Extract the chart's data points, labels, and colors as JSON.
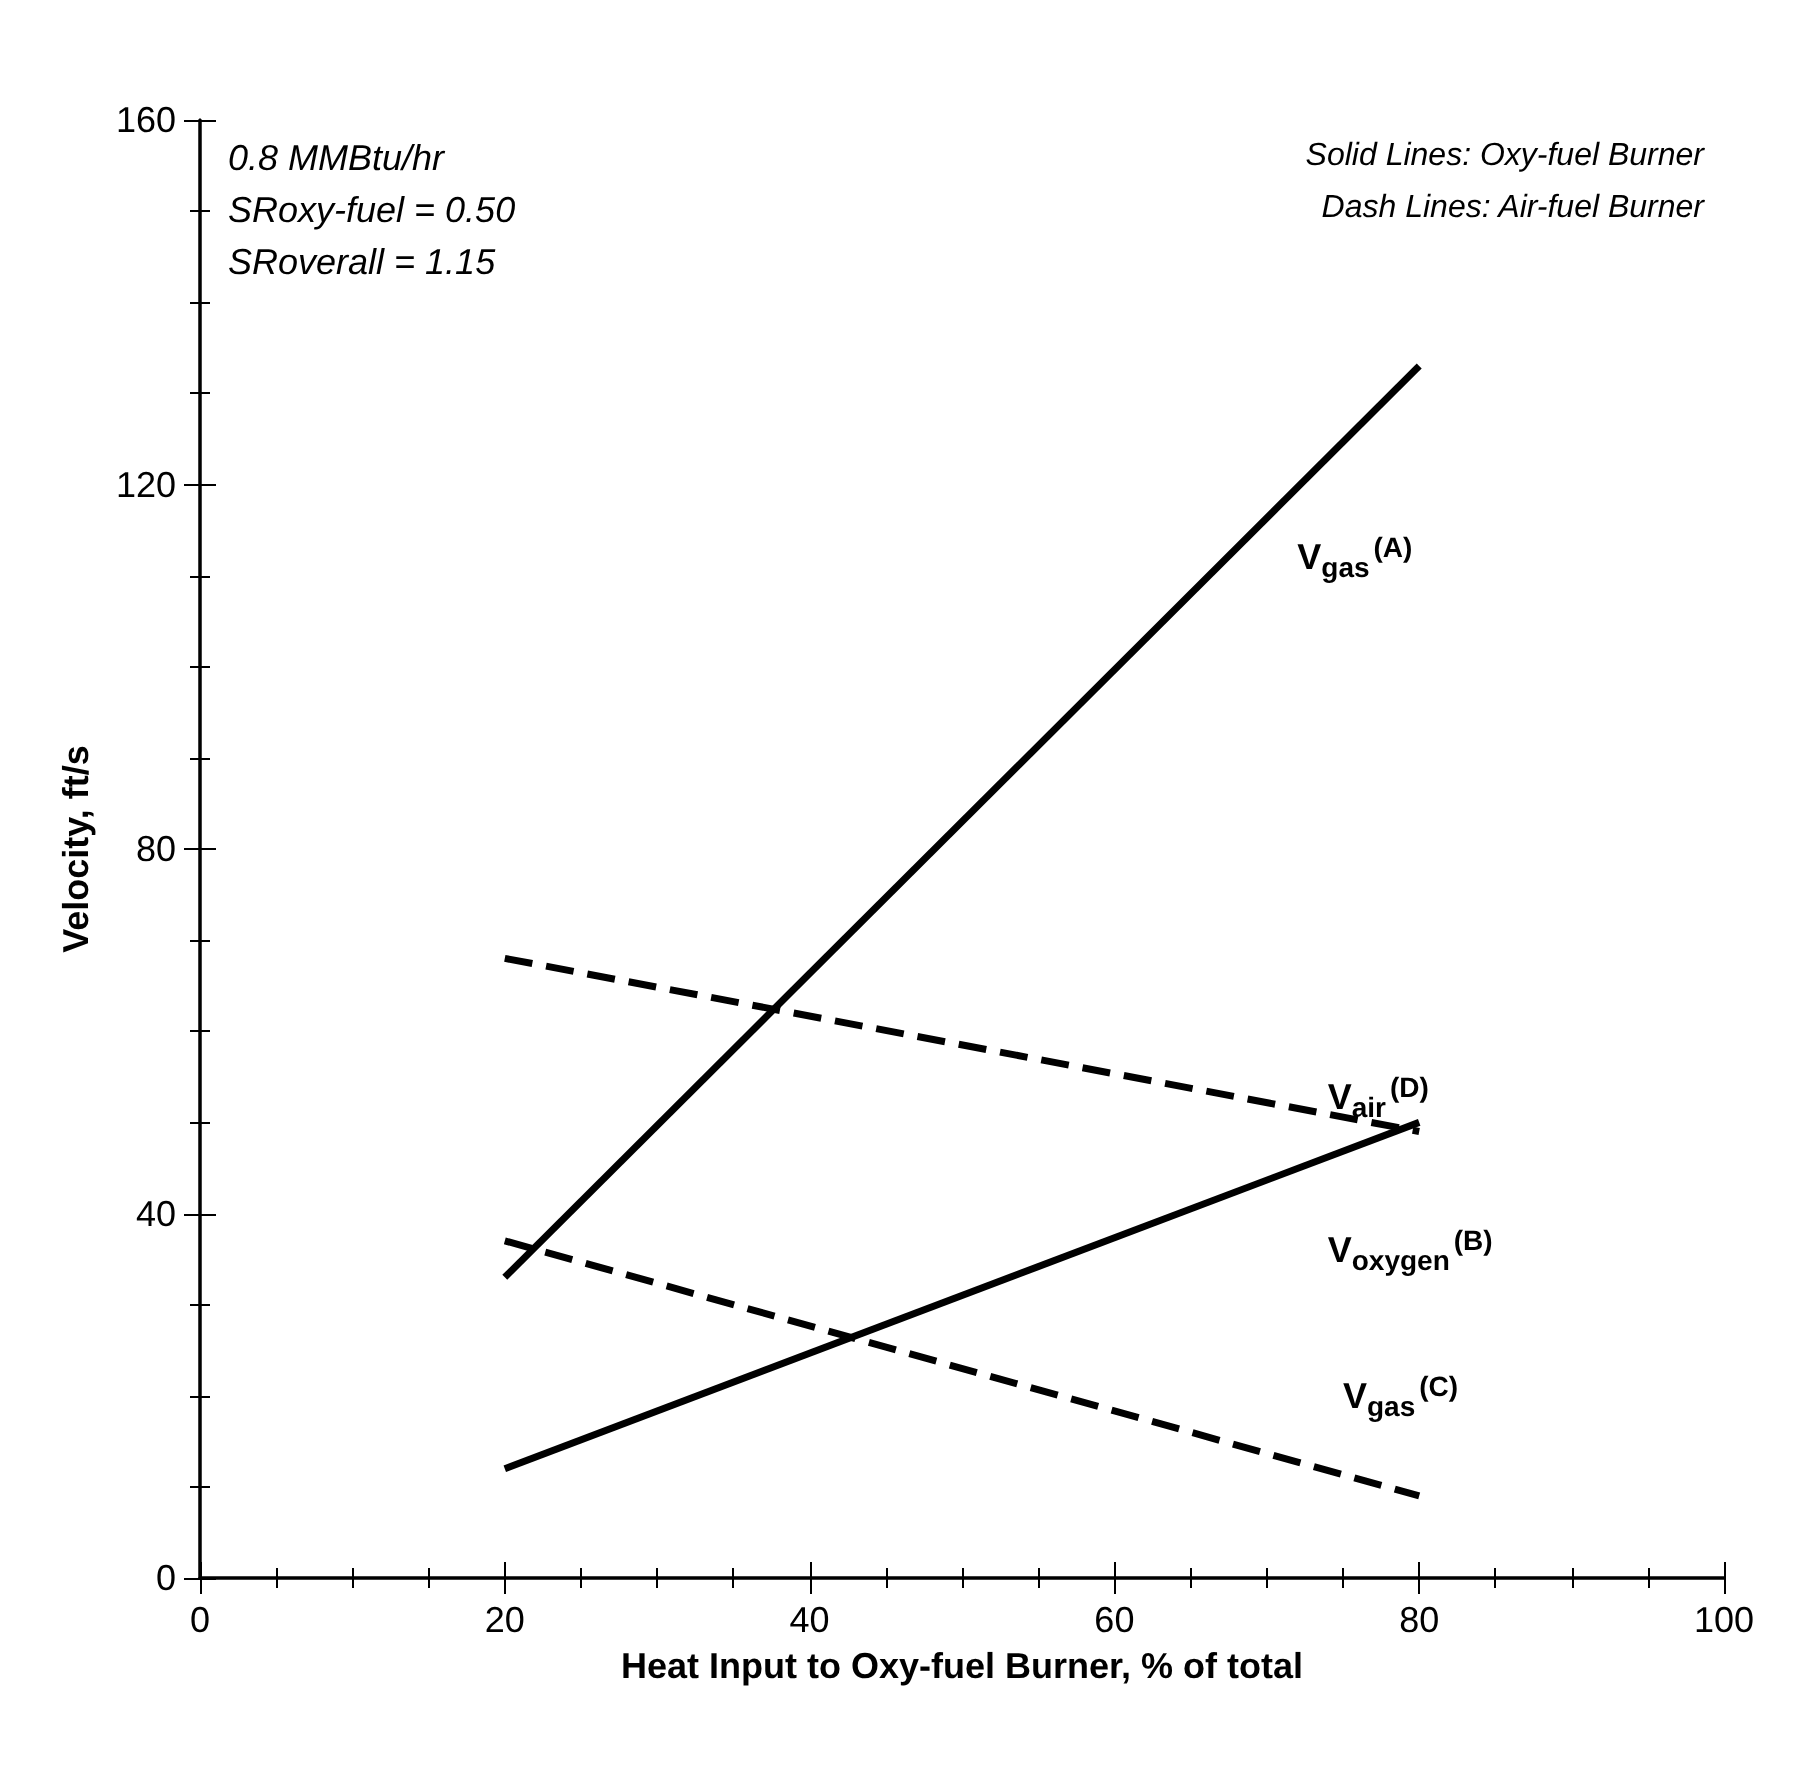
{
  "chart_data": {
    "type": "line",
    "xlabel": "Heat Input to Oxy-fuel Burner, % of total",
    "ylabel": "Velocity, ft/s",
    "x": [
      20,
      80
    ],
    "xlim": [
      0,
      100
    ],
    "xticks": [
      0,
      20,
      40,
      60,
      80,
      100
    ],
    "ylim": [
      0,
      160
    ],
    "yticks": [
      0,
      40,
      80,
      120,
      160
    ],
    "grid": false,
    "marker": "none",
    "series": [
      {
        "color": "#000000",
        "line_style": "solid",
        "values": [
          33,
          133
        ]
      },
      {
        "color": "#000000",
        "line_style": "solid",
        "values": [
          12,
          50
        ]
      },
      {
        "color": "#000000",
        "line_style": "dashed",
        "values": [
          68,
          49
        ]
      },
      {
        "color": "#000000",
        "line_style": "dashed",
        "values": [
          37,
          9
        ]
      }
    ],
    "annotations": [
      "0.8 MMBtu/hr",
      "SRoxy-fuel = 0.50",
      "SRoverall = 1.15",
      "Solid Lines: Oxy-fuel Burner",
      "Dash Lines: Air-fuel Burner",
      "V$_{gas}$$^{(A)}$",
      "V$_{air}$$^{(D)}$",
      "V$_{oxygen}$$^{(B)}$",
      "V$_{gas}$$^{(C)}$"
    ]
  }
}
